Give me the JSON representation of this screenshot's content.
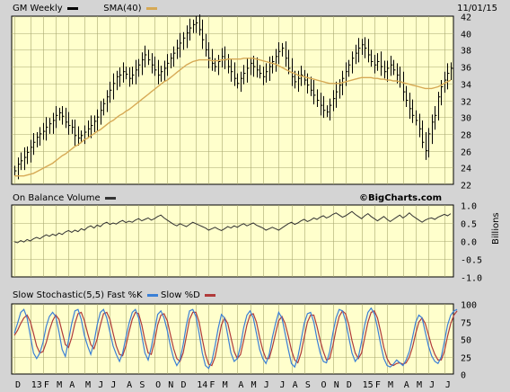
{
  "header": {
    "ticker_label": "GM Weekly",
    "sma_label": "SMA(40)",
    "date": "11/01/15",
    "watermark": "©BigCharts.com"
  },
  "colors": {
    "panel_bg": "#ffffcc",
    "frame_bg": "#d4d4d4",
    "grid": "#a8a870",
    "price_bar": "#000000",
    "sma": "#d6a955",
    "obv": "#333333",
    "fast_k": "#3a7fd6",
    "slow_d": "#b03a3a"
  },
  "chart_data": [
    {
      "type": "ohlc",
      "name": "price",
      "legend": [
        "GM Weekly",
        "SMA(40)"
      ],
      "ylim": [
        22,
        42
      ],
      "yticks": [
        22,
        24,
        26,
        28,
        30,
        32,
        34,
        36,
        38,
        40,
        42
      ],
      "x_start": "2012-12-03",
      "x_step_days": 7,
      "close": [
        23.6,
        24.4,
        24.8,
        25.2,
        25.8,
        26.4,
        27.0,
        27.6,
        28.0,
        28.3,
        28.8,
        29.2,
        29.6,
        30.2,
        30.5,
        30.1,
        29.4,
        29.0,
        28.8,
        27.8,
        27.5,
        27.8,
        28.2,
        28.6,
        29.0,
        29.5,
        30.0,
        30.8,
        31.6,
        32.4,
        33.2,
        34.0,
        34.8,
        35.0,
        35.4,
        35.1,
        34.6,
        35.0,
        35.6,
        36.2,
        36.8,
        37.4,
        36.8,
        36.2,
        35.6,
        35.0,
        35.4,
        35.8,
        36.4,
        37.0,
        37.6,
        38.2,
        38.8,
        39.4,
        40.0,
        40.6,
        41.0,
        41.2,
        40.4,
        39.2,
        38.0,
        37.0,
        36.4,
        36.0,
        36.6,
        37.2,
        36.8,
        36.0,
        35.4,
        34.6,
        34.0,
        34.6,
        35.2,
        35.8,
        36.4,
        36.0,
        35.6,
        35.2,
        34.8,
        35.4,
        36.0,
        36.6,
        37.2,
        37.8,
        38.2,
        37.0,
        35.8,
        34.8,
        34.2,
        34.6,
        35.0,
        34.4,
        33.8,
        33.2,
        32.6,
        32.0,
        31.4,
        30.8,
        30.6,
        31.4,
        32.2,
        33.0,
        33.8,
        34.6,
        35.4,
        36.2,
        37.0,
        37.6,
        38.2,
        38.6,
        38.2,
        37.4,
        36.6,
        36.2,
        36.6,
        36.0,
        35.4,
        35.8,
        36.2,
        35.6,
        35.0,
        34.2,
        33.0,
        32.0,
        31.0,
        30.2,
        29.6,
        28.6,
        27.0,
        26.0,
        28.0,
        29.4,
        30.2,
        32.4,
        33.6,
        34.4,
        35.2,
        35.8
      ],
      "sma40": [
        23.0,
        23.0,
        23.0,
        23.0,
        23.1,
        23.2,
        23.3,
        23.5,
        23.7,
        23.9,
        24.1,
        24.3,
        24.5,
        24.8,
        25.1,
        25.4,
        25.6,
        25.9,
        26.2,
        26.5,
        26.7,
        27.0,
        27.3,
        27.5,
        27.8,
        28.0,
        28.3,
        28.5,
        28.8,
        29.1,
        29.4,
        29.6,
        29.9,
        30.2,
        30.4,
        30.7,
        30.9,
        31.2,
        31.5,
        31.8,
        32.1,
        32.4,
        32.7,
        33.0,
        33.3,
        33.6,
        33.9,
        34.2,
        34.4,
        34.7,
        35.0,
        35.3,
        35.6,
        35.9,
        36.2,
        36.4,
        36.6,
        36.7,
        36.8,
        36.8,
        36.8,
        36.8,
        36.7,
        36.7,
        36.7,
        36.8,
        36.8,
        36.9,
        36.9,
        36.9,
        36.9,
        36.9,
        37.0,
        37.0,
        37.0,
        37.0,
        36.9,
        36.8,
        36.7,
        36.6,
        36.5,
        36.4,
        36.3,
        36.1,
        35.9,
        35.7,
        35.5,
        35.3,
        35.2,
        35.0,
        34.9,
        34.8,
        34.7,
        34.6,
        34.5,
        34.4,
        34.3,
        34.2,
        34.1,
        34.0,
        34.0,
        34.0,
        34.0,
        34.1,
        34.2,
        34.3,
        34.4,
        34.5,
        34.6,
        34.7,
        34.7,
        34.7,
        34.7,
        34.6,
        34.6,
        34.5,
        34.5,
        34.4,
        34.4,
        34.3,
        34.3,
        34.2,
        34.1,
        34.0,
        33.9,
        33.8,
        33.7,
        33.6,
        33.5,
        33.4,
        33.4,
        33.4,
        33.5,
        33.6,
        33.8,
        34.0,
        34.2,
        34.4
      ]
    },
    {
      "type": "line",
      "name": "On Balance Volume",
      "unit": "Billions",
      "ylim": [
        -1.0,
        1.0
      ],
      "yticks": [
        -1.0,
        -0.5,
        0.0,
        0.5,
        1.0
      ],
      "values": [
        -0.02,
        -0.05,
        0.01,
        -0.03,
        0.04,
        0.0,
        0.06,
        0.1,
        0.06,
        0.12,
        0.17,
        0.13,
        0.19,
        0.15,
        0.22,
        0.18,
        0.25,
        0.29,
        0.24,
        0.3,
        0.26,
        0.34,
        0.3,
        0.38,
        0.42,
        0.36,
        0.44,
        0.4,
        0.48,
        0.52,
        0.46,
        0.5,
        0.47,
        0.53,
        0.57,
        0.51,
        0.55,
        0.52,
        0.58,
        0.62,
        0.56,
        0.6,
        0.64,
        0.58,
        0.62,
        0.68,
        0.72,
        0.64,
        0.58,
        0.52,
        0.46,
        0.42,
        0.48,
        0.44,
        0.4,
        0.46,
        0.52,
        0.48,
        0.44,
        0.4,
        0.36,
        0.3,
        0.34,
        0.38,
        0.33,
        0.29,
        0.34,
        0.4,
        0.36,
        0.42,
        0.38,
        0.44,
        0.48,
        0.42,
        0.46,
        0.5,
        0.44,
        0.4,
        0.36,
        0.3,
        0.34,
        0.38,
        0.34,
        0.3,
        0.36,
        0.42,
        0.48,
        0.52,
        0.46,
        0.5,
        0.56,
        0.6,
        0.54,
        0.58,
        0.64,
        0.6,
        0.66,
        0.7,
        0.64,
        0.68,
        0.74,
        0.78,
        0.72,
        0.66,
        0.7,
        0.76,
        0.82,
        0.74,
        0.68,
        0.62,
        0.7,
        0.76,
        0.68,
        0.62,
        0.56,
        0.62,
        0.68,
        0.6,
        0.54,
        0.6,
        0.66,
        0.72,
        0.64,
        0.7,
        0.78,
        0.7,
        0.64,
        0.58,
        0.52,
        0.58,
        0.62,
        0.64,
        0.6,
        0.66,
        0.7,
        0.74,
        0.7,
        0.76
      ]
    },
    {
      "type": "line",
      "name": "Slow Stochastic(5,5)",
      "legend": [
        "Fast %K",
        "Slow %D"
      ],
      "ylim": [
        0,
        100
      ],
      "yticks": [
        0,
        25,
        50,
        75,
        100
      ],
      "fast_k": [
        58,
        72,
        88,
        92,
        80,
        55,
        30,
        22,
        30,
        45,
        68,
        82,
        88,
        82,
        60,
        35,
        25,
        48,
        72,
        90,
        92,
        78,
        55,
        40,
        28,
        45,
        70,
        88,
        92,
        80,
        60,
        40,
        28,
        18,
        30,
        52,
        72,
        88,
        92,
        80,
        55,
        30,
        20,
        38,
        62,
        85,
        90,
        80,
        62,
        40,
        22,
        12,
        20,
        42,
        70,
        90,
        92,
        82,
        58,
        30,
        12,
        8,
        18,
        40,
        65,
        85,
        80,
        55,
        30,
        18,
        22,
        40,
        66,
        84,
        90,
        80,
        58,
        35,
        22,
        15,
        28,
        52,
        72,
        88,
        80,
        58,
        35,
        15,
        10,
        24,
        48,
        72,
        86,
        88,
        74,
        50,
        30,
        18,
        16,
        32,
        58,
        80,
        92,
        90,
        76,
        52,
        30,
        18,
        24,
        46,
        70,
        88,
        94,
        86,
        66,
        42,
        22,
        12,
        10,
        14,
        20,
        16,
        12,
        20,
        32,
        52,
        74,
        84,
        80,
        60,
        40,
        26,
        18,
        15,
        24,
        46,
        70,
        84,
        90,
        92
      ],
      "slow_d": [
        55,
        62,
        72,
        80,
        84,
        75,
        58,
        40,
        30,
        32,
        45,
        62,
        76,
        84,
        78,
        60,
        42,
        38,
        52,
        72,
        86,
        88,
        76,
        58,
        42,
        36,
        50,
        70,
        86,
        88,
        78,
        58,
        40,
        28,
        26,
        40,
        60,
        78,
        88,
        86,
        70,
        48,
        30,
        28,
        46,
        70,
        84,
        86,
        76,
        56,
        36,
        22,
        18,
        30,
        54,
        78,
        88,
        88,
        74,
        50,
        28,
        14,
        12,
        24,
        46,
        70,
        80,
        72,
        52,
        32,
        22,
        28,
        48,
        70,
        84,
        86,
        74,
        52,
        34,
        22,
        22,
        38,
        58,
        76,
        82,
        72,
        54,
        34,
        20,
        16,
        30,
        52,
        74,
        84,
        84,
        68,
        48,
        32,
        20,
        22,
        40,
        64,
        82,
        90,
        86,
        70,
        48,
        30,
        22,
        30,
        52,
        74,
        88,
        90,
        80,
        60,
        38,
        22,
        14,
        12,
        15,
        16,
        14,
        16,
        24,
        38,
        58,
        74,
        80,
        72,
        56,
        40,
        28,
        20,
        20,
        32,
        54,
        72,
        84,
        90
      ]
    }
  ],
  "x_axis": {
    "month_labels": [
      "D",
      "13",
      "F",
      "M",
      "A",
      "M",
      "J",
      "J",
      "A",
      "S",
      "O",
      "N",
      "D",
      "14",
      "F",
      "M",
      "A",
      "M",
      "J",
      "J",
      "A",
      "S",
      "O",
      "N",
      "D",
      "15",
      "F",
      "M",
      "A",
      "M",
      "J",
      "J",
      "A",
      "S",
      "O"
    ]
  }
}
